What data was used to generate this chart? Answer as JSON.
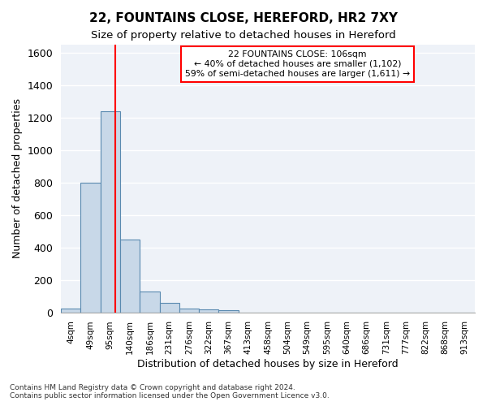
{
  "title1": "22, FOUNTAINS CLOSE, HEREFORD, HR2 7XY",
  "title2": "Size of property relative to detached houses in Hereford",
  "xlabel": "Distribution of detached houses by size in Hereford",
  "ylabel": "Number of detached properties",
  "bin_labels": [
    "4sqm",
    "49sqm",
    "95sqm",
    "140sqm",
    "186sqm",
    "231sqm",
    "276sqm",
    "322sqm",
    "367sqm",
    "413sqm",
    "458sqm",
    "504sqm",
    "549sqm",
    "595sqm",
    "640sqm",
    "686sqm",
    "731sqm",
    "777sqm",
    "822sqm",
    "868sqm",
    "913sqm"
  ],
  "bar_values": [
    25,
    800,
    1240,
    450,
    130,
    60,
    25,
    18,
    15,
    0,
    0,
    0,
    0,
    0,
    0,
    0,
    0,
    0,
    0,
    0,
    0
  ],
  "bar_color": "#c8d8e8",
  "bar_edge_color": "#5a8ab0",
  "bar_edge_width": 0.8,
  "red_line_x": 2.24,
  "annotation_text": "22 FOUNTAINS CLOSE: 106sqm\n← 40% of detached houses are smaller (1,102)\n59% of semi-detached houses are larger (1,611) →",
  "annotation_box_color": "white",
  "annotation_box_edge": "red",
  "ylim": [
    0,
    1650
  ],
  "yticks": [
    0,
    200,
    400,
    600,
    800,
    1000,
    1200,
    1400,
    1600
  ],
  "background_color": "#eef2f8",
  "grid_color": "white",
  "footer1": "Contains HM Land Registry data © Crown copyright and database right 2024.",
  "footer2": "Contains public sector information licensed under the Open Government Licence v3.0."
}
